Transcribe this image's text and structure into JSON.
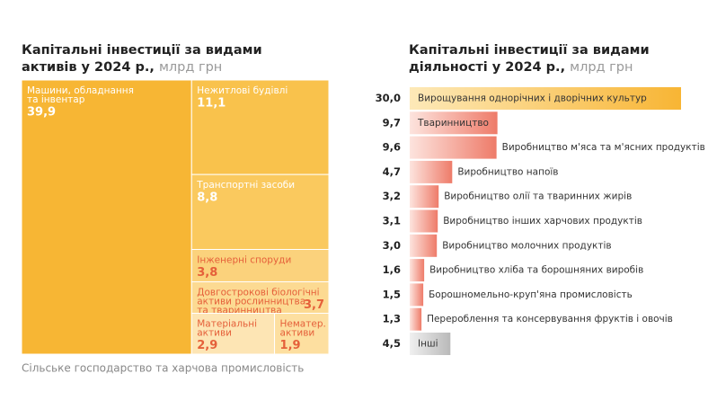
{
  "chart_data": [
    {
      "type": "treemap",
      "title": [
        "Капітальні інвестиції за видами",
        "активів у 2024 р.,"
      ],
      "unit": "млрд грн",
      "labels": [
        [
          "Машини, обладнання",
          "та інвентар"
        ],
        [
          "Нежитлові будівлі"
        ],
        [
          "Транспортні засоби"
        ],
        [
          "Інженерні споруди"
        ],
        [
          "Довгострокові біологічні",
          "активи рослинництва",
          "та тваринництва"
        ],
        [
          "Матеріальні",
          "активи"
        ],
        [
          "Нематер.",
          "активи"
        ]
      ],
      "values": [
        39.9,
        11.1,
        8.8,
        3.8,
        3.7,
        2.9,
        1.9
      ],
      "value_labels": [
        "39,9",
        "11,1",
        "8,8",
        "3,8",
        "3,7",
        "2,9",
        "1,9"
      ],
      "colors": [
        "#f7b634",
        "#f9c24c",
        "#fac95e",
        "#fbd27c",
        "#fcda92",
        "#fde5b4",
        "#fddfa0"
      ],
      "text_colors": [
        "#ffffff",
        "#ffffff",
        "#ffffff",
        "#e5603a",
        "#e5603a",
        "#e5603a",
        "#e5603a"
      ],
      "note": "Сільське господарство та харчова промисловість"
    },
    {
      "type": "bar",
      "title": [
        "Капітальні інвестиції за видами",
        "діяльності у 2024 р.,"
      ],
      "unit": "млрд грн",
      "categories": [
        "Вирощування однорічних і дворічних культур",
        "Тваринництво",
        "Виробництво м'яса та м'ясних продуктів",
        "Виробництво напоїв",
        "Виробництво олії та тваринних жирів",
        "Виробництво інших харчових продуктів",
        "Виробництво молочних продуктів",
        "Виробництво хліба та борошняних виробів",
        "Борошномельно-круп'яна промисловість",
        "Перероблення та консервування фруктів і овочів",
        "Інші"
      ],
      "values": [
        30.0,
        9.7,
        9.6,
        4.7,
        3.2,
        3.1,
        3.0,
        1.6,
        1.5,
        1.3,
        4.5
      ],
      "value_labels": [
        "30,0",
        "9,7",
        "9,6",
        "4,7",
        "3,2",
        "3,1",
        "3,0",
        "1,6",
        "1,5",
        "1,3",
        "4,5"
      ],
      "colors": [
        [
          "#fde9b8",
          "#f8b534"
        ],
        [
          "#fde4de",
          "#ee7b69"
        ],
        [
          "#fde4de",
          "#ee7b69"
        ],
        [
          "#fde4de",
          "#ee7b69"
        ],
        [
          "#fde4de",
          "#ee7b69"
        ],
        [
          "#fde4de",
          "#ee7b69"
        ],
        [
          "#fde4de",
          "#ee7b69"
        ],
        [
          "#fde4de",
          "#ee7b69"
        ],
        [
          "#fde4de",
          "#ee7b69"
        ],
        [
          "#fde4de",
          "#ee7b69"
        ],
        [
          "#f0f0f0",
          "#b9b9b9"
        ]
      ]
    }
  ]
}
